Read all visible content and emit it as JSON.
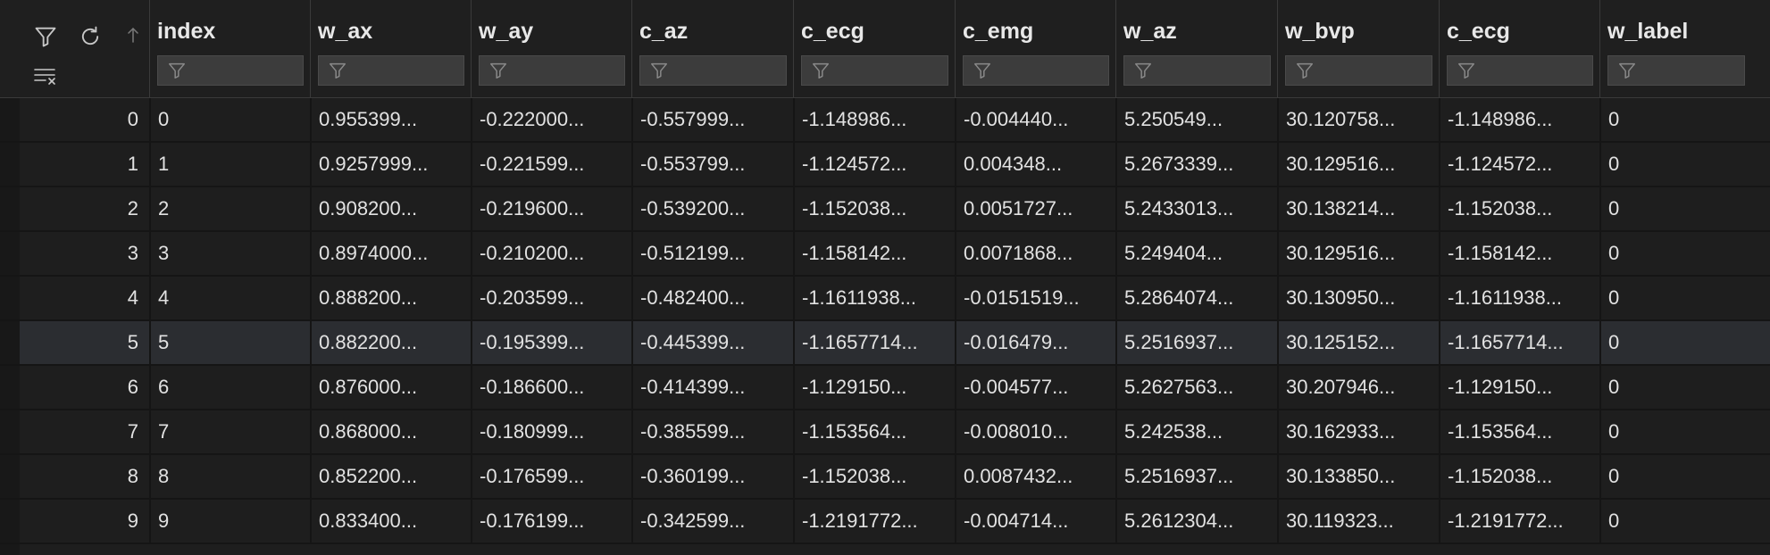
{
  "toolbar": {
    "filter_icon": "filter-icon",
    "refresh_icon": "refresh-icon",
    "sort_icon": "sort-arrow-icon",
    "clear_filters_icon": "clear-filters-icon"
  },
  "columns": [
    {
      "name": "index",
      "filter_placeholder": ""
    },
    {
      "name": "w_ax",
      "filter_placeholder": ""
    },
    {
      "name": "w_ay",
      "filter_placeholder": ""
    },
    {
      "name": "c_az",
      "filter_placeholder": ""
    },
    {
      "name": "c_ecg",
      "filter_placeholder": ""
    },
    {
      "name": "c_emg",
      "filter_placeholder": ""
    },
    {
      "name": "w_az",
      "filter_placeholder": ""
    },
    {
      "name": "w_bvp",
      "filter_placeholder": ""
    },
    {
      "name": "c_ecg",
      "filter_placeholder": ""
    },
    {
      "name": "w_label",
      "filter_placeholder": ""
    }
  ],
  "rows": [
    {
      "rowno": "0",
      "cells": [
        "0",
        "0.955399...",
        "-0.222000...",
        "-0.557999...",
        "-1.148986...",
        "-0.004440...",
        "5.250549...",
        "30.120758...",
        "-1.148986...",
        "0"
      ]
    },
    {
      "rowno": "1",
      "cells": [
        "1",
        "0.9257999...",
        "-0.221599...",
        "-0.553799...",
        "-1.124572...",
        "0.004348...",
        "5.2673339...",
        "30.129516...",
        "-1.124572...",
        "0"
      ]
    },
    {
      "rowno": "2",
      "cells": [
        "2",
        "0.908200...",
        "-0.219600...",
        "-0.539200...",
        "-1.152038...",
        "0.0051727...",
        "5.2433013...",
        "30.138214...",
        "-1.152038...",
        "0"
      ]
    },
    {
      "rowno": "3",
      "cells": [
        "3",
        "0.8974000...",
        "-0.210200...",
        "-0.512199...",
        "-1.158142...",
        "0.0071868...",
        "5.249404...",
        "30.129516...",
        "-1.158142...",
        "0"
      ]
    },
    {
      "rowno": "4",
      "cells": [
        "4",
        "0.888200...",
        "-0.203599...",
        "-0.482400...",
        "-1.1611938...",
        "-0.0151519...",
        "5.2864074...",
        "30.130950...",
        "-1.1611938...",
        "0"
      ]
    },
    {
      "rowno": "5",
      "cells": [
        "5",
        "0.882200...",
        "-0.195399...",
        "-0.445399...",
        "-1.1657714...",
        "-0.016479...",
        "5.2516937...",
        "30.125152...",
        "-1.1657714...",
        "0"
      ]
    },
    {
      "rowno": "6",
      "cells": [
        "6",
        "0.876000...",
        "-0.186600...",
        "-0.414399...",
        "-1.129150...",
        "-0.004577...",
        "5.2627563...",
        "30.207946...",
        "-1.129150...",
        "0"
      ]
    },
    {
      "rowno": "7",
      "cells": [
        "7",
        "0.868000...",
        "-0.180999...",
        "-0.385599...",
        "-1.153564...",
        "-0.008010...",
        "5.242538...",
        "30.162933...",
        "-1.153564...",
        "0"
      ]
    },
    {
      "rowno": "8",
      "cells": [
        "8",
        "0.852200...",
        "-0.176599...",
        "-0.360199...",
        "-1.152038...",
        "0.0087432...",
        "5.2516937...",
        "30.133850...",
        "-1.152038...",
        "0"
      ]
    },
    {
      "rowno": "9",
      "cells": [
        "9",
        "0.833400...",
        "-0.176199...",
        "-0.342599...",
        "-1.2191772...",
        "-0.004714...",
        "5.2612304...",
        "30.119323...",
        "-1.2191772...",
        "0"
      ]
    }
  ],
  "selected_row": 5,
  "colors": {
    "background": "#1e1e1e",
    "header": "#1f1f1f",
    "selected_row": "#2b2d31",
    "filter_box": "#3c3c3c",
    "text": "#e2e2e2"
  }
}
